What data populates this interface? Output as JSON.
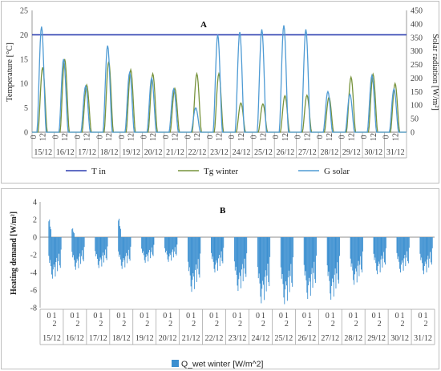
{
  "chart_data": [
    {
      "type": "line",
      "title": "A",
      "ylabel": "Temperature [°C]",
      "y2label": "Solar radiation [W/m²]",
      "ylim": [
        0,
        25
      ],
      "yticks": [
        0,
        5,
        10,
        15,
        20,
        25
      ],
      "y2lim": [
        0,
        450
      ],
      "y2ticks": [
        0,
        50,
        100,
        150,
        200,
        250,
        300,
        350,
        400,
        450
      ],
      "day_labels": [
        "15/12",
        "16/12",
        "17/12",
        "18/12",
        "19/12",
        "20/12",
        "21/12",
        "22/12",
        "23/12",
        "24/12",
        "25/12",
        "26/12",
        "27/12",
        "28/12",
        "29/12",
        "30/12",
        "31/12"
      ],
      "hour_labels": [
        "0",
        "12"
      ],
      "legend_position": "bottom",
      "series": [
        {
          "name": "T in",
          "color": "#2e3fb0",
          "axis": "left",
          "constant": 20
        },
        {
          "name": "Tg winter",
          "color": "#77933c",
          "axis": "left",
          "daily_peak": [
            13.3,
            15.0,
            9.7,
            14.5,
            12.8,
            12.0,
            9.0,
            12.0,
            12.0,
            6.0,
            5.8,
            7.5,
            7.6,
            7.2,
            11.3,
            11.9,
            10.0
          ]
        },
        {
          "name": "G solar",
          "color": "#4f9bd4",
          "axis": "right",
          "daily_peak": [
            390,
            270,
            170,
            320,
            220,
            200,
            160,
            90,
            360,
            370,
            380,
            395,
            380,
            150,
            140,
            210,
            160
          ]
        }
      ]
    },
    {
      "type": "bar",
      "title": "B",
      "ylabel": "Heating demand [W/m²]",
      "ylim": [
        -8,
        4
      ],
      "yticks": [
        -8,
        -6,
        -4,
        -2,
        0,
        2,
        4
      ],
      "day_labels": [
        "15/12",
        "16/12",
        "17/12",
        "18/12",
        "19/12",
        "20/12",
        "21/12",
        "22/12",
        "23/12",
        "24/12",
        "25/12",
        "26/12",
        "27/12",
        "28/12",
        "29/12",
        "30/12",
        "31/12"
      ],
      "hour_labels": [
        "0",
        "1",
        "2"
      ],
      "legend_position": "bottom",
      "series": [
        {
          "name": "Q_wet winter [W/m^2]",
          "color": "#3b8fd0",
          "daily_min": [
            -4.7,
            -3.7,
            -3.5,
            -3.6,
            -2.9,
            -2.8,
            -6.2,
            -4.0,
            -6.1,
            -7.5,
            -7.6,
            -7.0,
            -7.1,
            -5.4,
            -4.2,
            -4.0,
            -4.2
          ],
          "daily_max": [
            2.0,
            1.0,
            0,
            2.1,
            0,
            0,
            0,
            0,
            0,
            0,
            0,
            0,
            0,
            0,
            0,
            0,
            0
          ]
        }
      ]
    }
  ]
}
